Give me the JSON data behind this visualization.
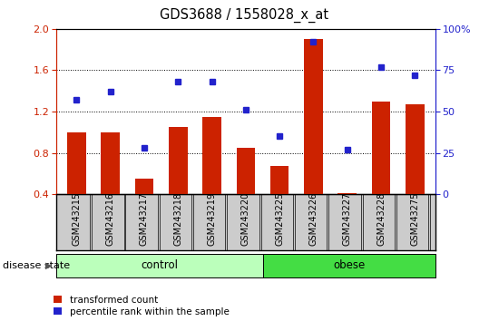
{
  "title": "GDS3688 / 1558028_x_at",
  "samples": [
    "GSM243215",
    "GSM243216",
    "GSM243217",
    "GSM243218",
    "GSM243219",
    "GSM243220",
    "GSM243225",
    "GSM243226",
    "GSM243227",
    "GSM243228",
    "GSM243275"
  ],
  "transformed_count": [
    1.0,
    1.0,
    0.55,
    1.05,
    1.15,
    0.85,
    0.67,
    1.9,
    0.41,
    1.3,
    1.27
  ],
  "percentile_rank": [
    57,
    62,
    28,
    68,
    68,
    51,
    35,
    92,
    27,
    77,
    72
  ],
  "control_count": 6,
  "obese_count": 5,
  "ylim_left": [
    0.4,
    2.0
  ],
  "ylim_right": [
    0,
    100
  ],
  "yticks_left": [
    0.4,
    0.8,
    1.2,
    1.6,
    2.0
  ],
  "yticks_right": [
    0,
    25,
    50,
    75,
    100
  ],
  "bar_color": "#cc2200",
  "dot_color": "#2222cc",
  "control_color": "#bbffbb",
  "obese_color": "#44dd44",
  "xtick_bg_color": "#cccccc",
  "tick_label_color_left": "#cc2200",
  "tick_label_color_right": "#2222cc",
  "label1": "transformed count",
  "label2": "percentile rank within the sample",
  "xlabel_disease": "disease state"
}
